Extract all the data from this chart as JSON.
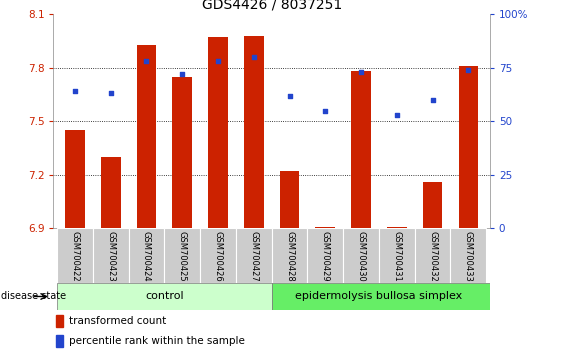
{
  "title": "GDS4426 / 8037251",
  "samples": [
    "GSM700422",
    "GSM700423",
    "GSM700424",
    "GSM700425",
    "GSM700426",
    "GSM700427",
    "GSM700428",
    "GSM700429",
    "GSM700430",
    "GSM700431",
    "GSM700432",
    "GSM700433"
  ],
  "transformed_count": [
    7.45,
    7.3,
    7.93,
    7.75,
    7.97,
    7.98,
    7.22,
    6.91,
    7.78,
    6.91,
    7.16,
    7.81
  ],
  "percentile_rank": [
    64,
    63,
    78,
    72,
    78,
    80,
    62,
    55,
    73,
    53,
    60,
    74
  ],
  "ylim_left": [
    6.9,
    8.1
  ],
  "ylim_right": [
    0,
    100
  ],
  "yticks_left": [
    6.9,
    7.2,
    7.5,
    7.8,
    8.1
  ],
  "yticks_right": [
    0,
    25,
    50,
    75,
    100
  ],
  "ytick_labels_left": [
    "6.9",
    "7.2",
    "7.5",
    "7.8",
    "8.1"
  ],
  "ytick_labels_right": [
    "0",
    "25",
    "50",
    "75",
    "100%"
  ],
  "bar_color": "#cc2200",
  "dot_color": "#2244cc",
  "n_control": 6,
  "n_disease": 6,
  "control_label": "control",
  "disease_label": "epidermolysis bullosa simplex",
  "disease_state_label": "disease state",
  "legend_bar_label": "transformed count",
  "legend_dot_label": "percentile rank within the sample",
  "control_bg": "#ccffcc",
  "disease_bg": "#66ee66",
  "sample_bg": "#cccccc",
  "tick_fontsize": 7.5,
  "title_fontsize": 10,
  "label_fontsize": 8,
  "sample_fontsize": 6.0
}
